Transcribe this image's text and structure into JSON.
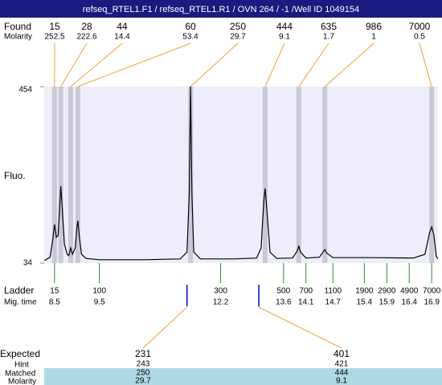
{
  "header": {
    "title": "refseq_RTEL1.F1 / refseq_RTEL1.R1 / OVN 264 / -1 /Well ID 1049154"
  },
  "chart_data": {
    "type": "line",
    "ylabel": "Fluo.",
    "ylim": [
      34,
      454
    ],
    "yticks": [
      34,
      454
    ],
    "xlim": [
      8.27,
      17.04
    ],
    "trace": {
      "x": [
        8.27,
        8.4,
        8.46,
        8.5,
        8.54,
        8.58,
        8.62,
        8.64,
        8.67,
        8.72,
        8.78,
        8.82,
        8.86,
        8.9,
        8.96,
        9.0,
        9.02,
        9.05,
        9.1,
        9.2,
        9.5,
        10.5,
        11.3,
        11.45,
        11.5,
        11.53,
        11.56,
        11.6,
        11.75,
        12.5,
        13.0,
        13.1,
        13.16,
        13.19,
        13.23,
        13.3,
        13.45,
        13.8,
        13.9,
        13.94,
        13.98,
        14.1,
        14.4,
        14.49,
        14.52,
        14.56,
        14.7,
        15.5,
        16.5,
        16.75,
        16.85,
        16.9,
        16.95,
        17.0,
        17.04
      ],
      "y": [
        40,
        48,
        90,
        126,
        95,
        100,
        180,
        217,
        170,
        80,
        55,
        52,
        70,
        55,
        70,
        120,
        135,
        100,
        55,
        45,
        42,
        42,
        44,
        60,
        200,
        454,
        200,
        60,
        44,
        44,
        46,
        70,
        180,
        212,
        160,
        60,
        45,
        46,
        62,
        74,
        60,
        46,
        48,
        62,
        66,
        58,
        47,
        47,
        46,
        55,
        105,
        120,
        100,
        50,
        44
      ]
    },
    "found": {
      "label": "Found",
      "molarity_label": "Molarity",
      "sizes": [
        15,
        28,
        44,
        60,
        250,
        444,
        635,
        986,
        7000
      ],
      "molarity": [
        252.5,
        222.6,
        14.4,
        53.4,
        29.7,
        9.1,
        1.7,
        1,
        0.5
      ],
      "times": [
        8.5,
        8.64,
        8.86,
        9.02,
        11.53,
        13.19,
        13.94,
        14.52,
        16.9
      ]
    },
    "ladder": {
      "label": "Ladder",
      "time_label": "Mig. time",
      "sizes": [
        15,
        100,
        300,
        500,
        700,
        1100,
        1900,
        2900,
        4900,
        7000
      ],
      "times": [
        8.5,
        9.5,
        12.2,
        13.6,
        14.1,
        14.7,
        15.4,
        15.9,
        16.4,
        16.9
      ]
    },
    "expected": {
      "label": "Expected",
      "hint_label": "Hint",
      "matched_label": "Matched",
      "molarity_label": "Molarity",
      "sizes": [
        231,
        401
      ],
      "hint": [
        243,
        421
      ],
      "matched": [
        250,
        444
      ],
      "molarity": [
        29.7,
        9.1
      ],
      "times": [
        11.45,
        13.05
      ]
    }
  }
}
